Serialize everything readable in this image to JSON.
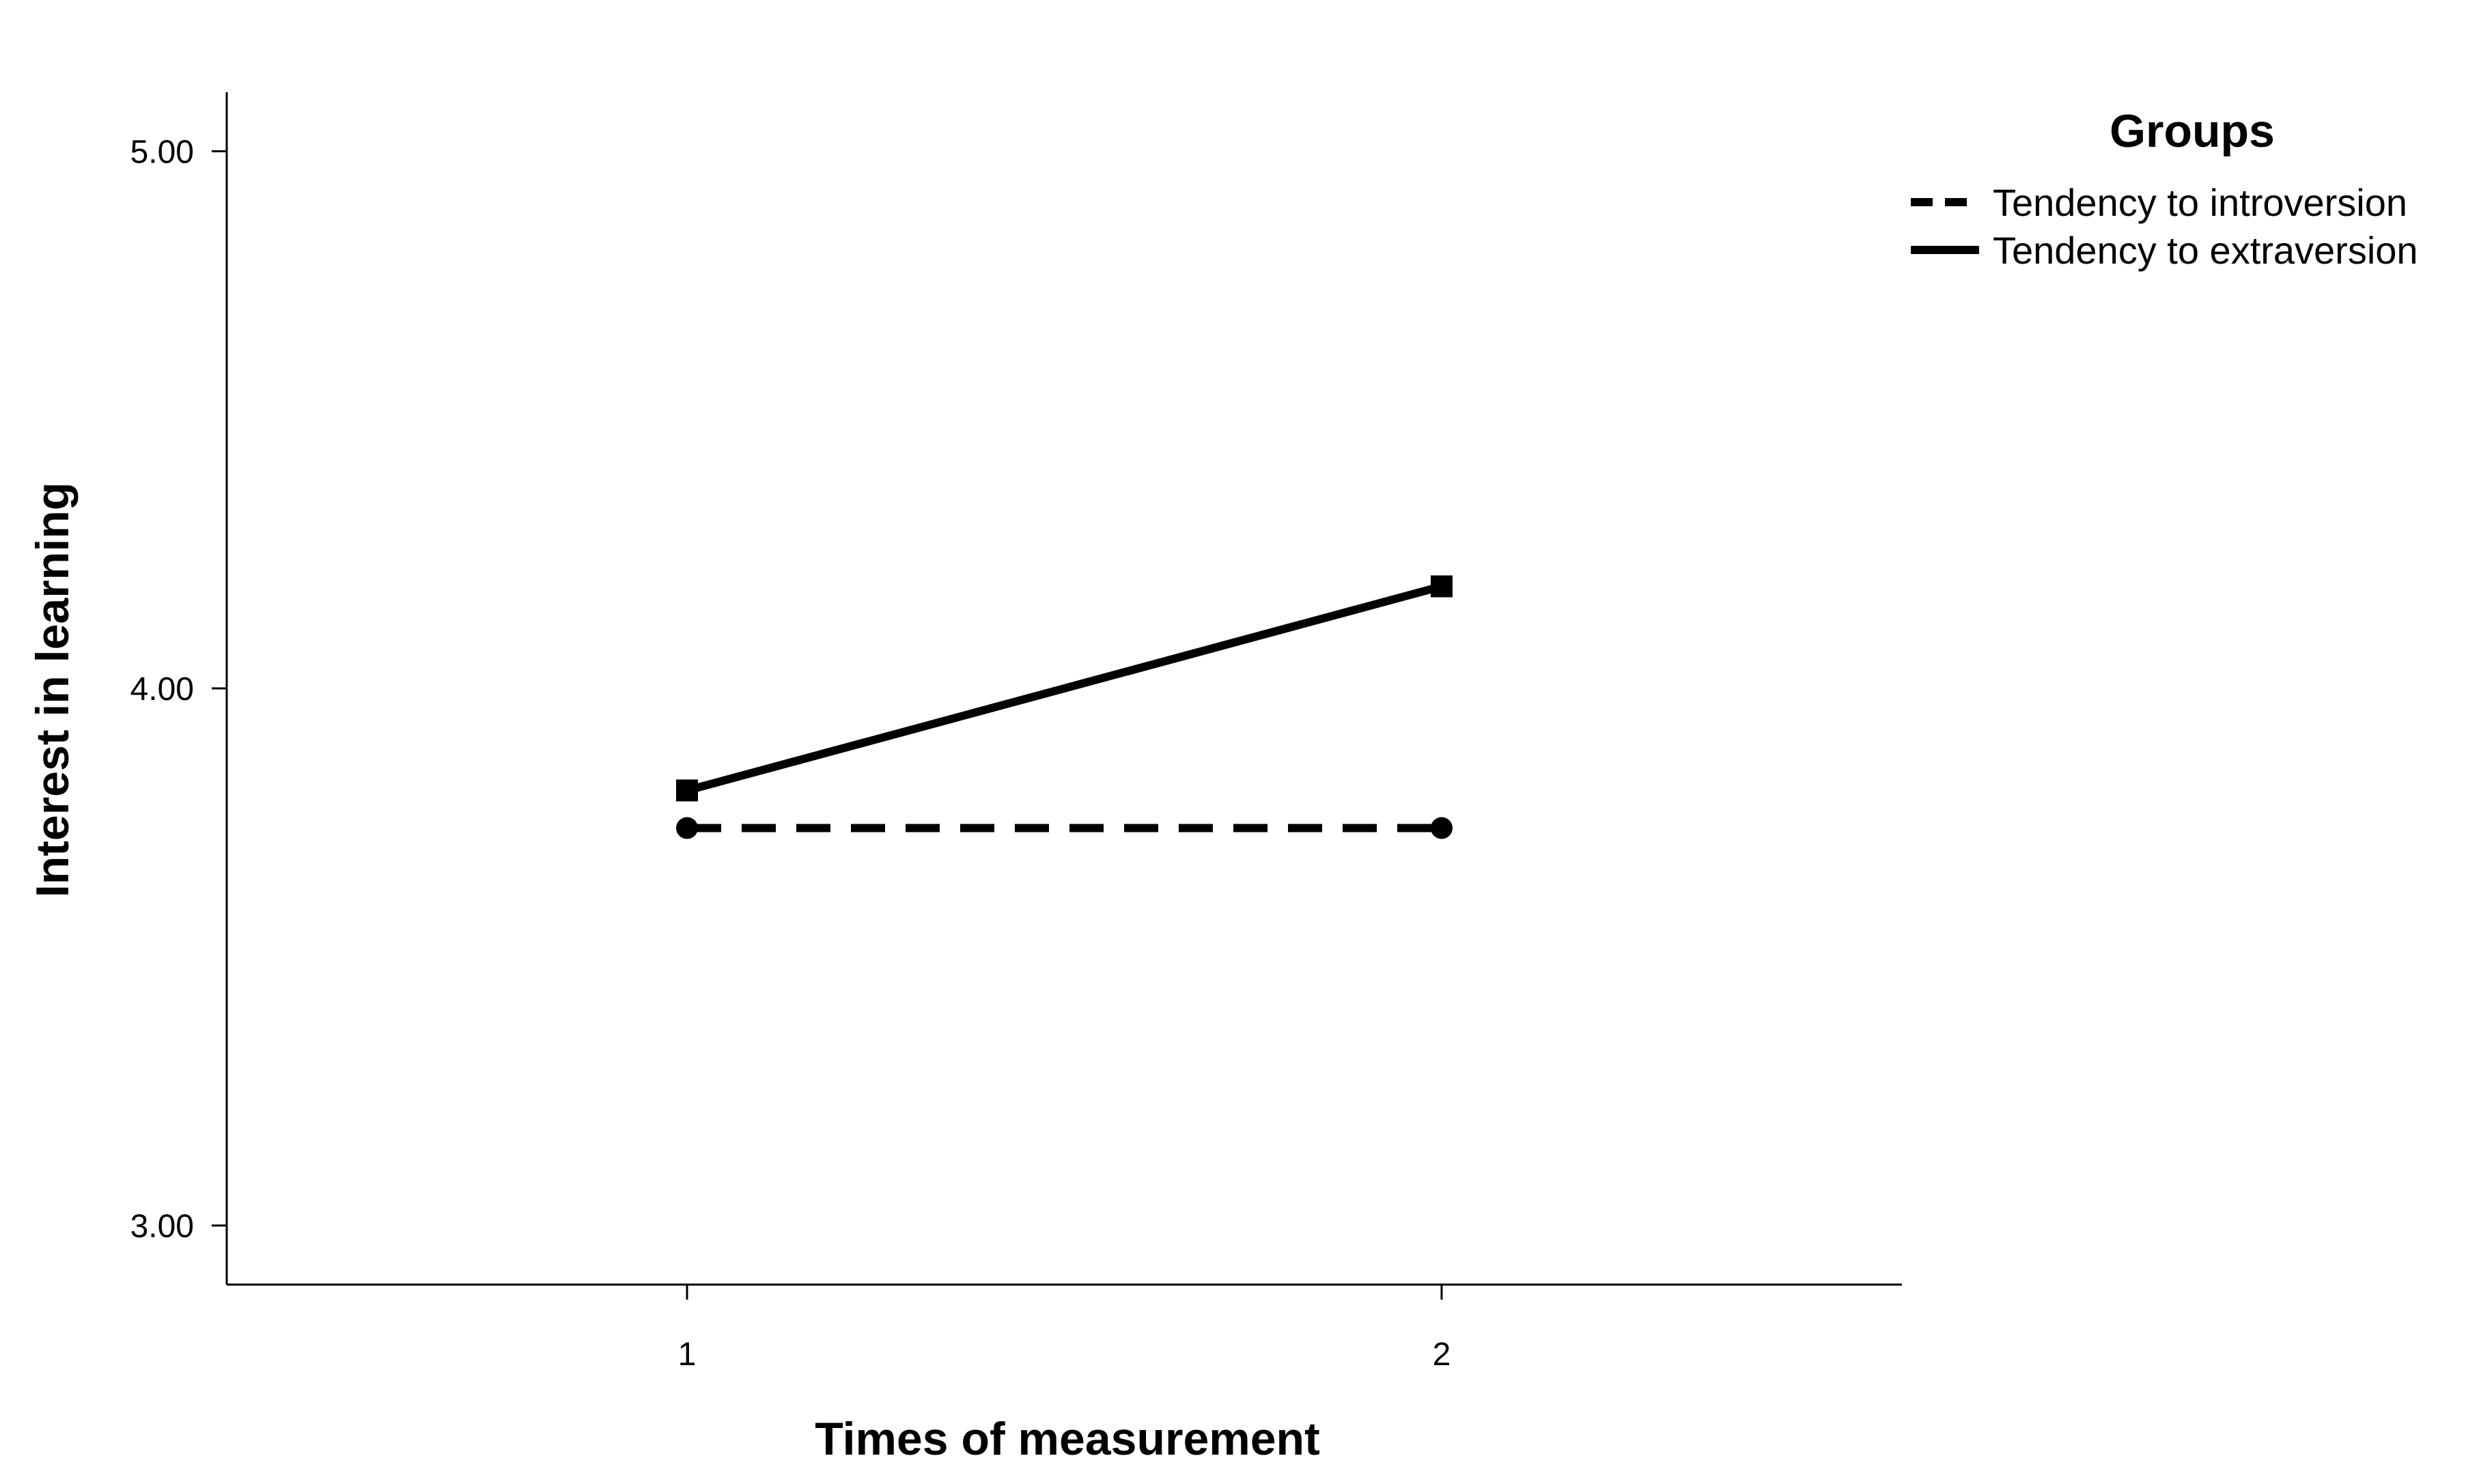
{
  "chart_data": {
    "type": "line",
    "title": "",
    "xlabel": "Times of measurement",
    "ylabel": "Interest in learning",
    "x": [
      1,
      2
    ],
    "xlim": [
      0.39,
      2.61
    ],
    "ylim": [
      2.89,
      5.11
    ],
    "yticks": [
      "3.00",
      "4.00",
      "5.00"
    ],
    "xticks": [
      "1",
      "2"
    ],
    "grid": false,
    "legend": {
      "title": "Groups",
      "position": "top-right"
    },
    "series": [
      {
        "name": "Tendency to introversion",
        "values": [
          3.74,
          3.74
        ],
        "line_style": "dashed",
        "marker": "circle",
        "color": "#000000"
      },
      {
        "name": "Tendency to extraversion",
        "values": [
          3.81,
          4.19
        ],
        "line_style": "solid",
        "marker": "square",
        "color": "#000000"
      }
    ]
  }
}
